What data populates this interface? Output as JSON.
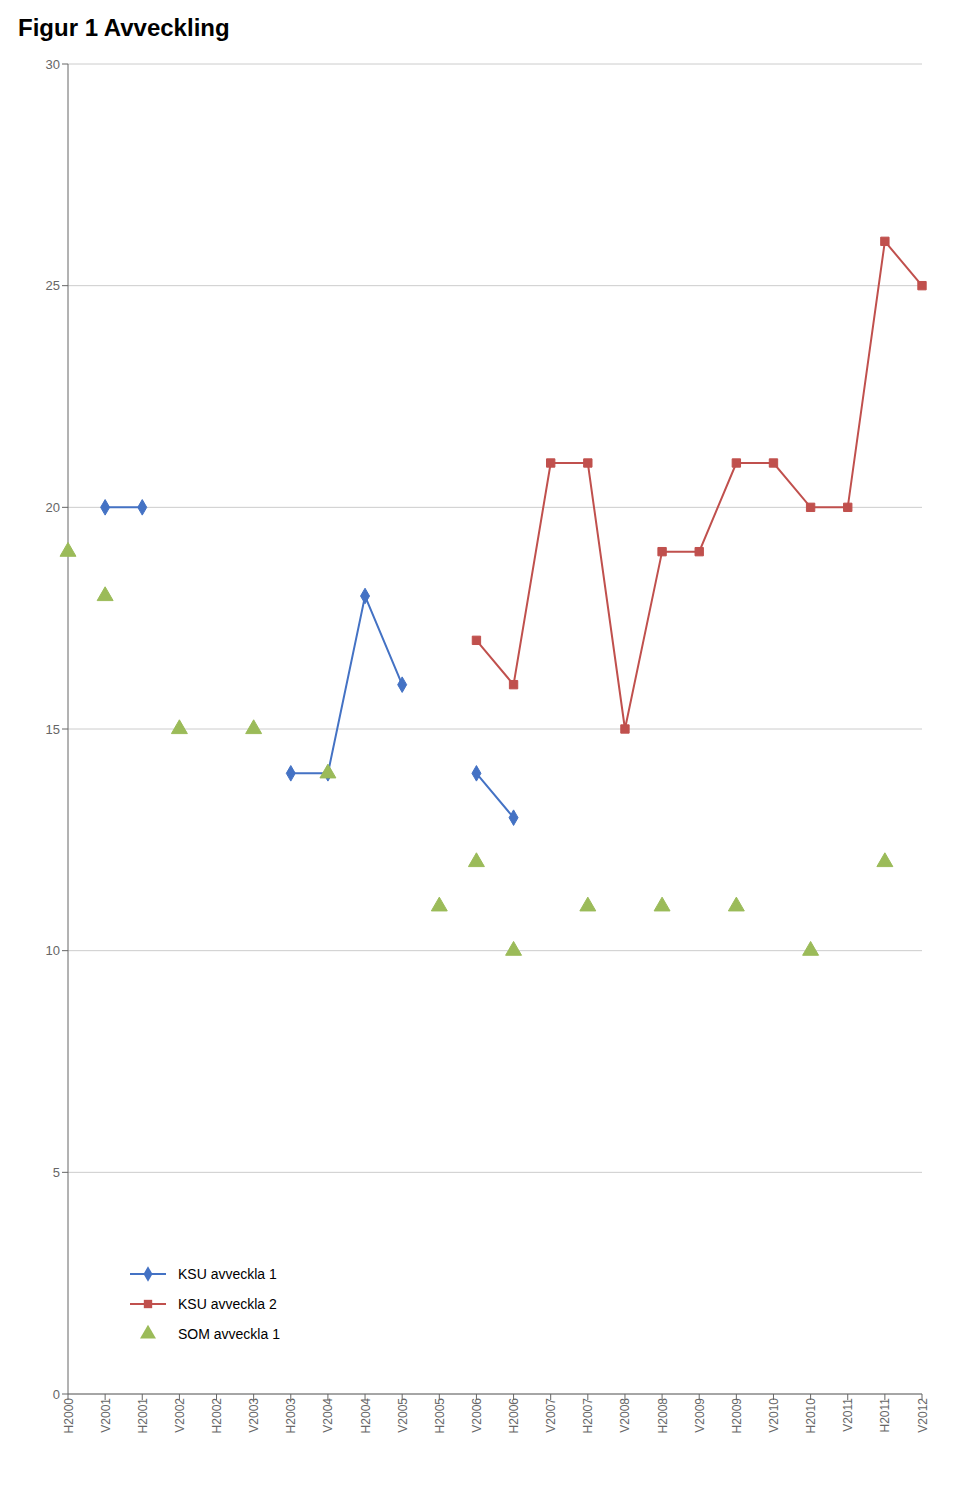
{
  "chart_data": {
    "type": "line",
    "title": "Figur 1 Avveckling",
    "categories": [
      "H2000",
      "V2001",
      "H2001",
      "V2002",
      "H2002",
      "V2003",
      "H2003",
      "V2004",
      "H2004",
      "V2005",
      "H2005",
      "V2006",
      "H2006",
      "V2007",
      "H2007",
      "V2008",
      "H2008",
      "V2009",
      "H2009",
      "V2010",
      "H2010",
      "V2011",
      "H2011",
      "V2012"
    ],
    "series": [
      {
        "name": "KSU avveckla 1",
        "color": "#4472C4",
        "marker": "diamond",
        "line_style": "solid",
        "values": [
          null,
          20,
          20,
          null,
          null,
          null,
          14,
          14,
          18,
          16,
          null,
          14,
          13,
          null,
          null,
          null,
          null,
          null,
          null,
          null,
          null,
          null,
          null,
          null
        ]
      },
      {
        "name": "KSU avveckla 2",
        "color": "#C0504D",
        "marker": "square",
        "line_style": "solid",
        "values": [
          null,
          null,
          null,
          null,
          null,
          null,
          null,
          null,
          null,
          null,
          null,
          17,
          16,
          21,
          21,
          15,
          19,
          19,
          21,
          21,
          20,
          20,
          26,
          25
        ]
      },
      {
        "name": "SOM avveckla 1",
        "color": "#9BBB59",
        "marker": "triangle",
        "line_style": "none",
        "values": [
          19,
          18,
          null,
          15,
          null,
          15,
          null,
          14,
          null,
          null,
          11,
          12,
          10,
          null,
          11,
          null,
          11,
          null,
          11,
          null,
          10,
          null,
          12,
          null
        ]
      }
    ],
    "ylim": [
      0,
      30
    ],
    "yticks": [
      0,
      5,
      10,
      15,
      20,
      25,
      30
    ],
    "grid": true,
    "legend": "lower left"
  }
}
